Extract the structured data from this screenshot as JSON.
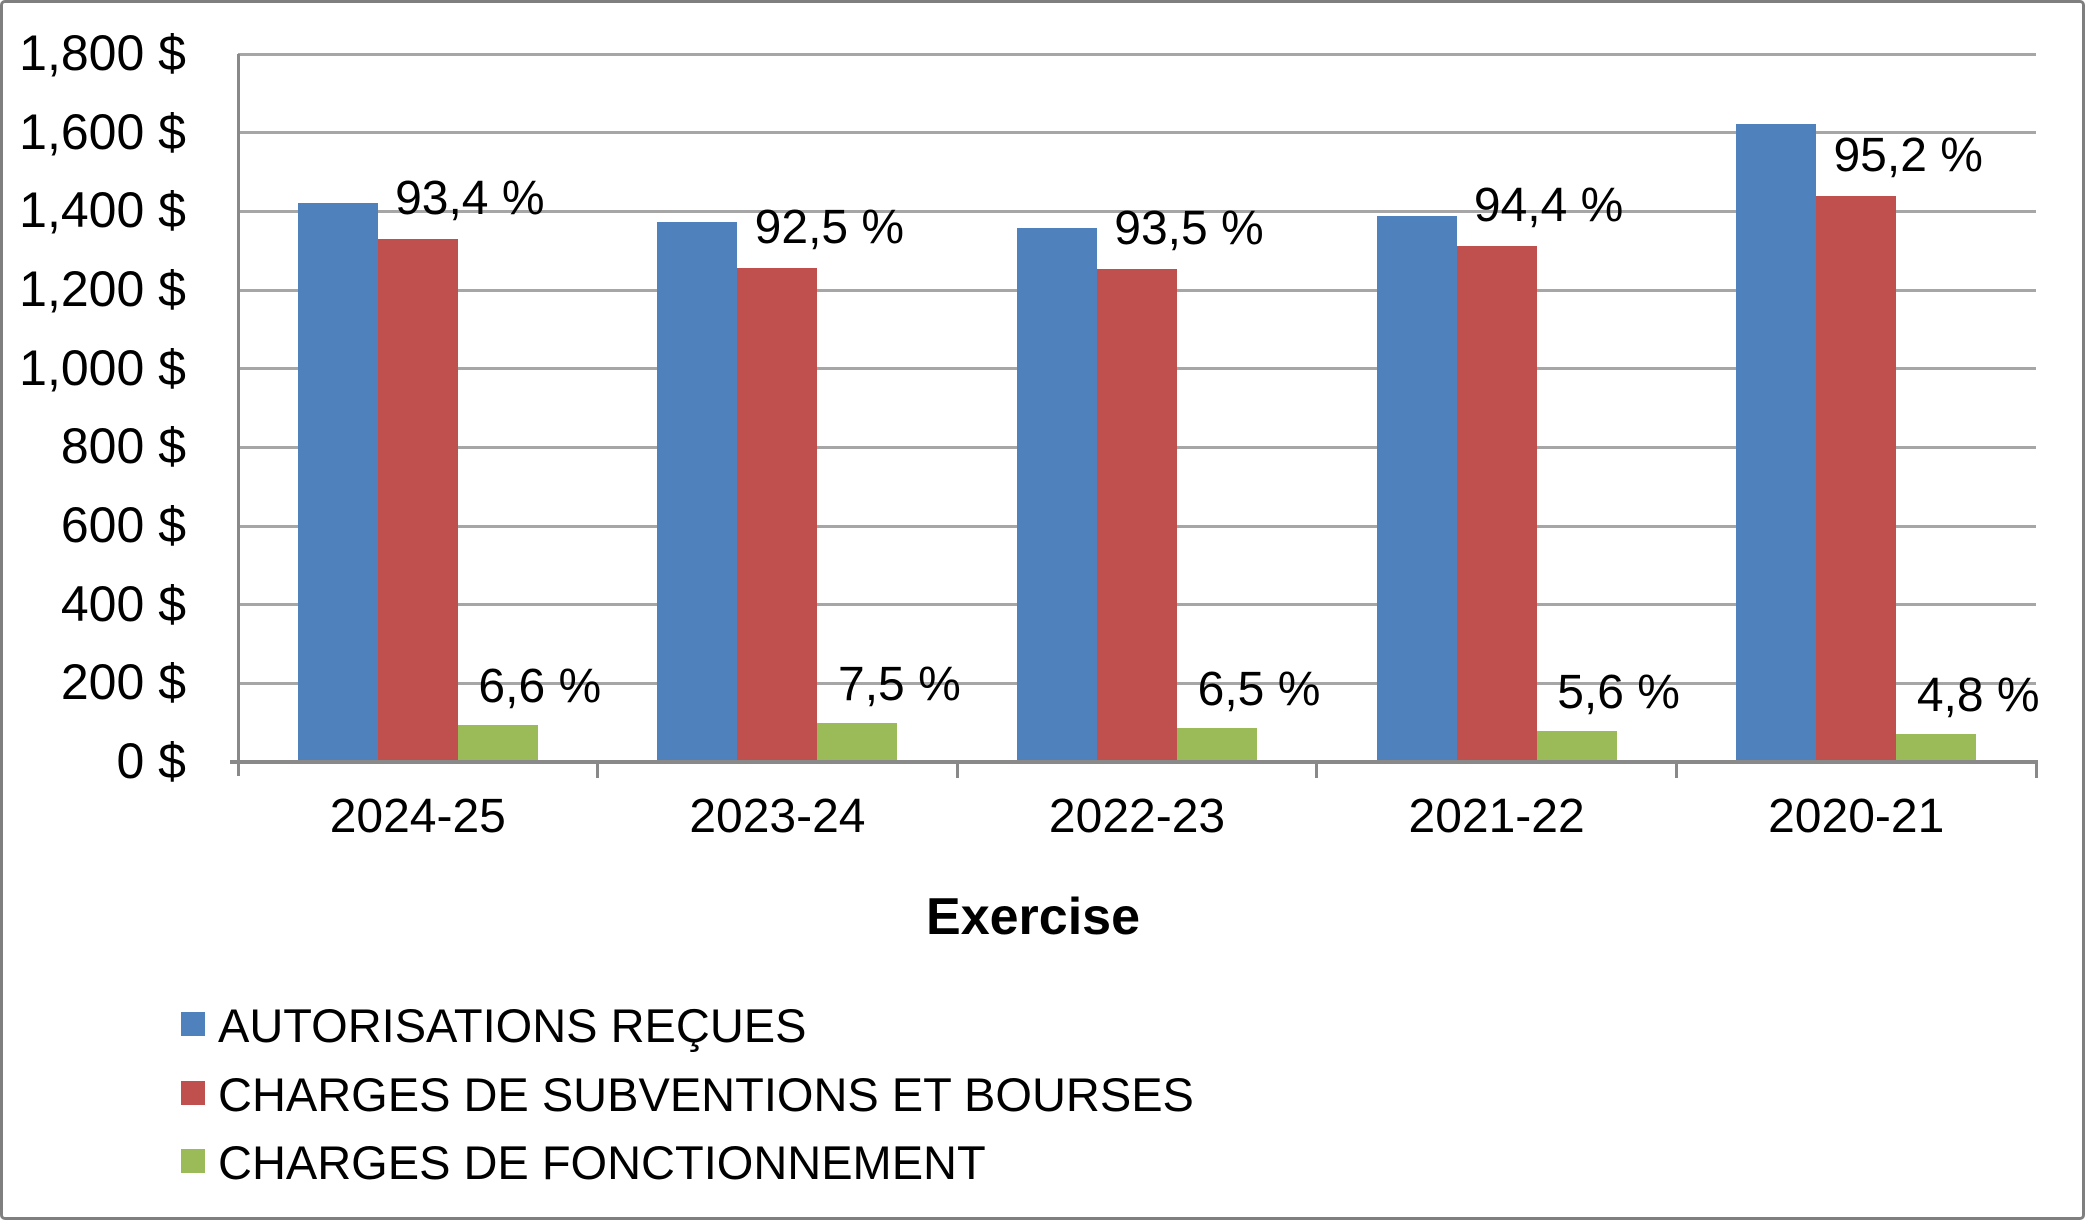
{
  "chart_data": {
    "type": "bar",
    "title": "",
    "xlabel": "Exercise",
    "ylabel": "",
    "categories": [
      "2024-25",
      "2023-24",
      "2022-23",
      "2021-22",
      "2020-21"
    ],
    "series": [
      {
        "name": "AUTORISATIONS REÇUES",
        "color": "#4f81bd",
        "values": [
          1420,
          1372,
          1357,
          1387,
          1621
        ],
        "data_labels": [
          "",
          "",
          "",
          "",
          ""
        ]
      },
      {
        "name": "CHARGES DE SUBVENTIONS ET BOURSES",
        "color": "#c0504d",
        "values": [
          1330,
          1257,
          1253,
          1312,
          1439
        ],
        "data_labels": [
          "93,4 %",
          "92,5 %",
          "93,5 %",
          "94,4 %",
          "95,2 %"
        ]
      },
      {
        "name": "CHARGES DE FONCTIONNEMENT",
        "color": "#9bbb59",
        "values": [
          95,
          100,
          87,
          78,
          72
        ],
        "data_labels": [
          "6,6 %",
          "7,5 %",
          "6,5 %",
          "5,6 %",
          "4,8 %"
        ]
      }
    ],
    "y_axis": {
      "min": 0,
      "max": 1800,
      "major_unit": 200,
      "tick_labels": [
        "0 $",
        "200 $",
        "400 $",
        "600 $",
        "800 $",
        "1,000 $",
        "1,200 $",
        "1,400 $",
        "1,600 $",
        "1,800 $"
      ]
    },
    "grid": true,
    "legend_position": "bottom-left",
    "colors": {
      "gridline": "#a6a6a6",
      "axis_line": "#898989",
      "frame_border": "#7f7f7f",
      "text": "#000000"
    }
  }
}
